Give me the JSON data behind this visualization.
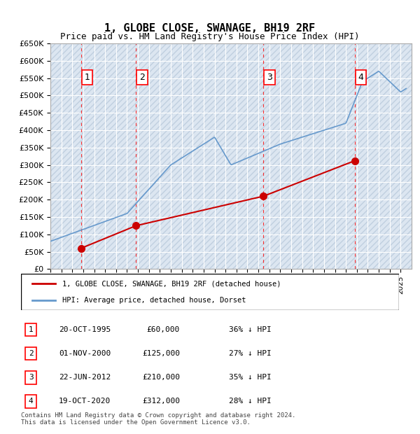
{
  "title": "1, GLOBE CLOSE, SWANAGE, BH19 2RF",
  "subtitle": "Price paid vs. HM Land Registry's House Price Index (HPI)",
  "ylabel": "",
  "ylim": [
    0,
    650000
  ],
  "yticks": [
    0,
    50000,
    100000,
    150000,
    200000,
    250000,
    300000,
    350000,
    400000,
    450000,
    500000,
    550000,
    600000,
    650000
  ],
  "background_color": "#dce6f1",
  "hatch_color": "#c0cfdf",
  "grid_color": "#ffffff",
  "sale_color": "#cc0000",
  "hpi_color": "#6699cc",
  "sale_points": [
    {
      "date_num": 1995.8,
      "value": 60000,
      "label": "1"
    },
    {
      "date_num": 2000.83,
      "value": 125000,
      "label": "2"
    },
    {
      "date_num": 2012.47,
      "value": 210000,
      "label": "3"
    },
    {
      "date_num": 2020.8,
      "value": 312000,
      "label": "4"
    }
  ],
  "legend_sale_label": "1, GLOBE CLOSE, SWANAGE, BH19 2RF (detached house)",
  "legend_hpi_label": "HPI: Average price, detached house, Dorset",
  "table_data": [
    [
      "1",
      "20-OCT-1995",
      "£60,000",
      "36% ↓ HPI"
    ],
    [
      "2",
      "01-NOV-2000",
      "£125,000",
      "27% ↓ HPI"
    ],
    [
      "3",
      "22-JUN-2012",
      "£210,000",
      "35% ↓ HPI"
    ],
    [
      "4",
      "19-OCT-2020",
      "£312,000",
      "28% ↓ HPI"
    ]
  ],
  "footnote": "Contains HM Land Registry data © Crown copyright and database right 2024.\nThis data is licensed under the Open Government Licence v3.0.",
  "xmin": 1993,
  "xmax": 2026
}
